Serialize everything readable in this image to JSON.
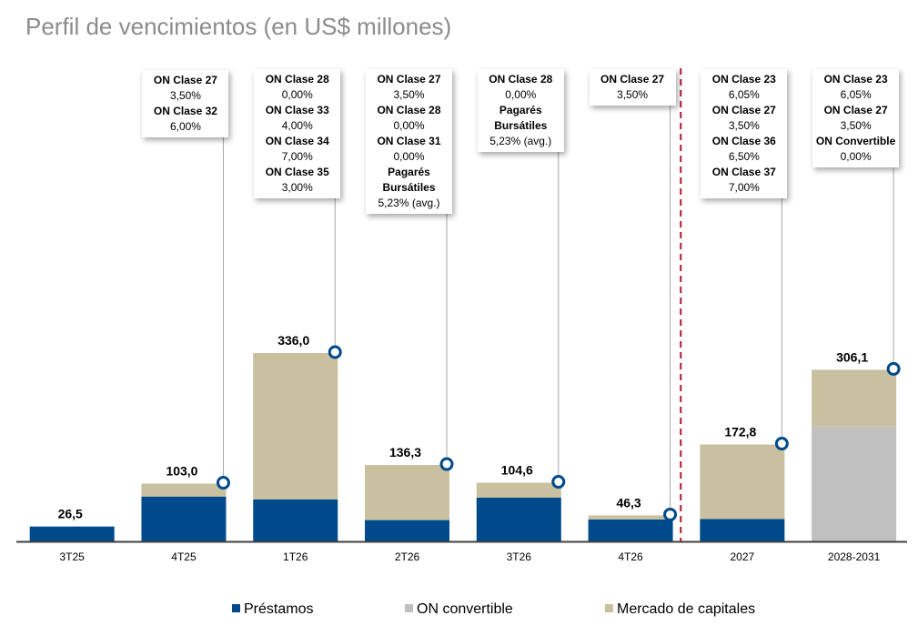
{
  "title": "Perfil de vencimientos (en US$ millones)",
  "colors": {
    "prestamos": "#004a8c",
    "convertible": "#c0c0c0",
    "mercado": "#c8c09f",
    "marker": "#004a8c",
    "divider": "#b0182e",
    "axis": "#404040",
    "title": "#8c8c8c"
  },
  "chart_data": {
    "type": "bar",
    "stacked": true,
    "categories": [
      "3T25",
      "4T25",
      "1T26",
      "2T26",
      "3T26",
      "4T26",
      "2027",
      "2028-2031"
    ],
    "series": [
      {
        "name": "Préstamos",
        "values": [
          26.5,
          80.0,
          75.0,
          38.0,
          78.0,
          39.0,
          40.0,
          0
        ]
      },
      {
        "name": "ON convertible",
        "values": [
          0,
          0,
          0,
          0,
          0,
          0,
          0,
          205.0
        ]
      },
      {
        "name": "Mercado de capitales",
        "values": [
          0,
          23.0,
          261.0,
          98.3,
          26.6,
          7.3,
          132.8,
          101.1
        ]
      }
    ],
    "totals": [
      "26,5",
      "103,0",
      "336,0",
      "136,3",
      "104,6",
      "46,3",
      "172,8",
      "306,1"
    ],
    "ylim": [
      0,
      340
    ],
    "legend_position": "bottom",
    "divider_after_category": "4T26",
    "annotations": [
      null,
      [
        {
          "name": "ON Clase 27",
          "rate": "3,50%"
        },
        {
          "name": "ON Clase 32",
          "rate": "6,00%"
        }
      ],
      [
        {
          "name": "ON Clase 28",
          "rate": "0,00%"
        },
        {
          "name": "ON Clase 33",
          "rate": "4,00%"
        },
        {
          "name": "ON Clase 34",
          "rate": "7,00%"
        },
        {
          "name": "ON Clase 35",
          "rate": "3,00%"
        }
      ],
      [
        {
          "name": "ON Clase 27",
          "rate": "3,50%"
        },
        {
          "name": "ON Clase 28",
          "rate": "0,00%"
        },
        {
          "name": "ON Clase 31",
          "rate": "0,00%"
        },
        {
          "name": "Pagarés Bursátiles",
          "rate": "5,23% (avg.)"
        }
      ],
      [
        {
          "name": "ON Clase 28",
          "rate": "0,00%"
        },
        {
          "name": "Pagarés Bursátiles",
          "rate": "5,23% (avg.)"
        }
      ],
      [
        {
          "name": "ON Clase 27",
          "rate": "3,50%"
        }
      ],
      [
        {
          "name": "ON Clase 23",
          "rate": "6,05%"
        },
        {
          "name": "ON Clase 27",
          "rate": "3,50%"
        },
        {
          "name": "ON Clase 36",
          "rate": "6,50%"
        },
        {
          "name": "ON Clase 37",
          "rate": "7,00%"
        }
      ],
      [
        {
          "name": "ON Clase 23",
          "rate": "6,05%"
        },
        {
          "name": "ON Clase 27",
          "rate": "3,50%"
        },
        {
          "name": "ON Convertible",
          "rate": "0,00%"
        }
      ]
    ]
  },
  "legend": [
    {
      "label": "Préstamos",
      "color": "#004a8c"
    },
    {
      "label": "ON convertible",
      "color": "#c0c0c0"
    },
    {
      "label": "Mercado de capitales",
      "color": "#c8c09f"
    }
  ]
}
